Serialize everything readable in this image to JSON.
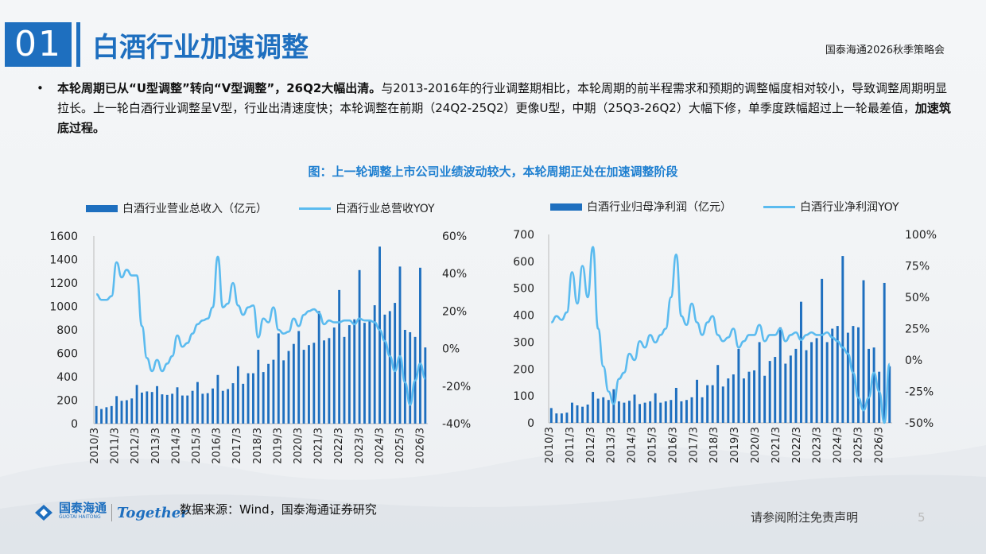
{
  "header": {
    "section_number": "01",
    "title": "白酒行业加速调整",
    "report_name": "国泰海通2026秋季策略会"
  },
  "bullet": {
    "bold_1": "本轮周期已从“U型调整”转向“V型调整”，26Q2大幅出清。",
    "text_1": "与2013-2016年的行业调整期相比，本轮周期的前半程需求和预期的调整幅度相对较小，导致调整周期明显拉长。上一轮白酒行业调整呈V型，行业出清速度快；本轮调整在前期（24Q2-25Q2）更像U型，中期（25Q3-26Q2）大幅下修，单季度跌幅超过上一轮最差值，",
    "bold_2": "加速筑底过程。"
  },
  "figure_title": "图：上一轮调整上市公司业绩波动较大，本轮周期正处在加速调整阶段",
  "charts": [
    {
      "legend_bar": "白酒行业营业总收入（亿元）",
      "legend_line": "白酒行业总营收YOY"
    },
    {
      "legend_bar": "白酒行业归母净利润（亿元）",
      "legend_line": "白酒行业净利润YOY"
    }
  ],
  "chart_data": [
    {
      "type": "bar",
      "x_tick_labels": [
        "2010/3",
        "2011/3",
        "2012/3",
        "2013/3",
        "2014/3",
        "2015/3",
        "2016/3",
        "2017/3",
        "2018/3",
        "2019/3",
        "2020/3",
        "2021/3",
        "2022/3",
        "2023/3",
        "2024/3",
        "2025/3",
        "2026/3"
      ],
      "left_axis": {
        "ticks": [
          "0",
          "200",
          "400",
          "600",
          "800",
          "1000",
          "1200",
          "1400",
          "1600"
        ],
        "min": 0,
        "max": 1600
      },
      "right_axis": {
        "ticks": [
          "-40%",
          "-20%",
          "0%",
          "20%",
          "40%",
          "60%"
        ],
        "min": -40,
        "max": 60
      },
      "series": [
        {
          "name": "白酒行业营业总收入（亿元）",
          "type": "bar",
          "axis": "left",
          "values": [
            150,
            125,
            140,
            150,
            235,
            195,
            200,
            215,
            330,
            265,
            275,
            270,
            320,
            250,
            245,
            255,
            310,
            240,
            240,
            280,
            355,
            255,
            260,
            300,
            415,
            280,
            295,
            345,
            490,
            340,
            430,
            430,
            630,
            440,
            510,
            545,
            770,
            540,
            620,
            680,
            790,
            630,
            670,
            690,
            960,
            710,
            730,
            820,
            1140,
            740,
            840,
            890,
            1310,
            860,
            880,
            1010,
            1510,
            930,
            960,
            1030,
            1340,
            800,
            780,
            740,
            1330,
            650
          ]
        },
        {
          "name": "白酒行业总营收YOY",
          "type": "line",
          "axis": "right",
          "values": [
            29,
            26,
            26,
            28,
            46,
            38,
            42,
            39,
            39,
            12,
            -5,
            -12,
            -6,
            -12,
            -8,
            -4,
            7,
            1,
            3,
            8,
            13,
            15,
            16,
            22,
            49,
            22,
            24,
            35,
            23,
            18,
            22,
            23,
            6,
            16,
            14,
            22,
            10,
            8,
            9,
            16,
            12,
            18,
            20,
            21,
            19,
            13,
            15,
            14,
            14,
            15,
            15,
            13,
            16,
            15,
            15,
            14,
            10,
            4,
            -4,
            -12,
            -4,
            -18,
            -30,
            -17,
            -8,
            -16
          ]
        }
      ]
    },
    {
      "type": "bar",
      "x_tick_labels": [
        "2010/3",
        "2011/3",
        "2012/3",
        "2013/3",
        "2014/3",
        "2015/3",
        "2016/3",
        "2017/3",
        "2018/3",
        "2019/3",
        "2020/3",
        "2021/3",
        "2022/3",
        "2023/3",
        "2024/3",
        "2025/3",
        "2026/3"
      ],
      "left_axis": {
        "ticks": [
          "0",
          "100",
          "200",
          "300",
          "400",
          "500",
          "600",
          "700"
        ],
        "min": 0,
        "max": 700
      },
      "right_axis": {
        "ticks": [
          "-50%",
          "-25%",
          "0%",
          "25%",
          "50%",
          "75%",
          "100%"
        ],
        "min": -50,
        "max": 100
      },
      "series": [
        {
          "name": "白酒行业归母净利润（亿元）",
          "type": "bar",
          "axis": "left",
          "values": [
            55,
            35,
            35,
            38,
            75,
            65,
            60,
            68,
            115,
            90,
            95,
            85,
            125,
            80,
            75,
            82,
            105,
            70,
            75,
            80,
            110,
            75,
            80,
            85,
            130,
            80,
            85,
            95,
            160,
            95,
            140,
            140,
            215,
            135,
            165,
            180,
            275,
            165,
            190,
            195,
            300,
            175,
            230,
            245,
            355,
            220,
            250,
            275,
            450,
            270,
            300,
            315,
            535,
            300,
            350,
            360,
            620,
            335,
            360,
            355,
            530,
            275,
            280,
            190,
            520,
            210
          ]
        },
        {
          "name": "白酒行业净利润YOY",
          "type": "line",
          "axis": "right",
          "values": [
            30,
            35,
            32,
            38,
            70,
            45,
            75,
            50,
            90,
            25,
            -5,
            -25,
            -35,
            -15,
            -10,
            5,
            0,
            15,
            10,
            20,
            14,
            20,
            25,
            50,
            84,
            35,
            28,
            45,
            30,
            20,
            30,
            35,
            20,
            15,
            18,
            25,
            10,
            15,
            20,
            20,
            28,
            15,
            20,
            20,
            25,
            15,
            20,
            22,
            16,
            20,
            22,
            20,
            20,
            22,
            18,
            15,
            10,
            5,
            -10,
            -30,
            -40,
            -30,
            -10,
            -25,
            -50,
            -3
          ]
        }
      ]
    }
  ],
  "footer": {
    "logo_cn": "国泰海通",
    "logo_en": "GUOTAI HAITONG",
    "slogan": "Together",
    "source": "数据来源：Wind，国泰海通证券研究",
    "disclaimer": "请参阅附注免责声明",
    "page": "5"
  },
  "colors": {
    "accent": "#1e6fbf",
    "bar": "#1e6fbf",
    "line": "#5bbbef",
    "figure_title": "#1e7fd0"
  }
}
